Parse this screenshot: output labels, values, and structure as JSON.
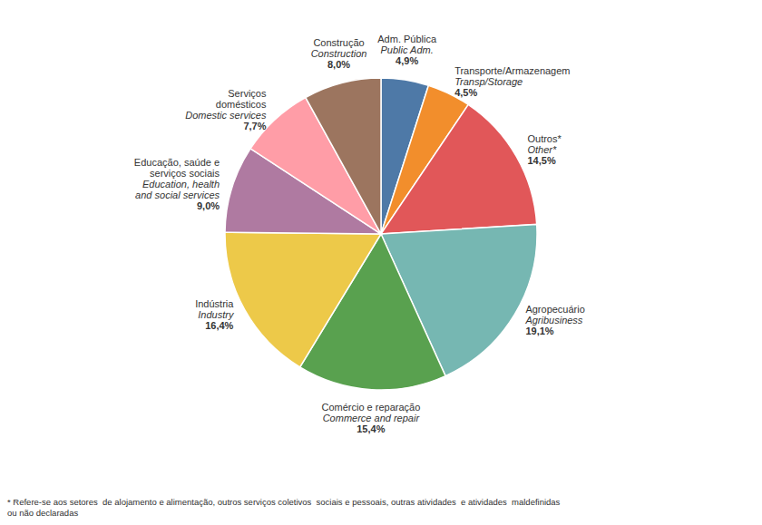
{
  "chart_data": {
    "type": "pie",
    "categories": [
      "Adm. Pública",
      "Transporte/Armazenagem",
      "Outros*",
      "Agropecuário",
      "Comércio e reparação",
      "Indústria",
      "Educação, saúde e\nserviços sociais",
      "Serviços\ndomésticos",
      "Construção"
    ],
    "categories_en": [
      "Public Adm.",
      "Transp/Storage",
      "Other*",
      "Agribusiness",
      "Commerce and repair",
      "Industry",
      "Education, health\nand social services",
      "Domestic services",
      "Construction"
    ],
    "values": [
      4.9,
      4.5,
      14.5,
      19.1,
      15.4,
      16.4,
      9.0,
      7.7,
      8.0
    ],
    "value_labels": [
      "4,9%",
      "4,5%",
      "14,5%",
      "19,1%",
      "15,4%",
      "16,4%",
      "9,0%",
      "7,7%",
      "8,0%"
    ],
    "data_labels": true,
    "footnote": "* Refere-se aos setores  de alojamento e alimentação, outros serviços coletivos  sociais e pessoais, outras atividades  e atividades  maldefinidas\nou não declaradas"
  }
}
